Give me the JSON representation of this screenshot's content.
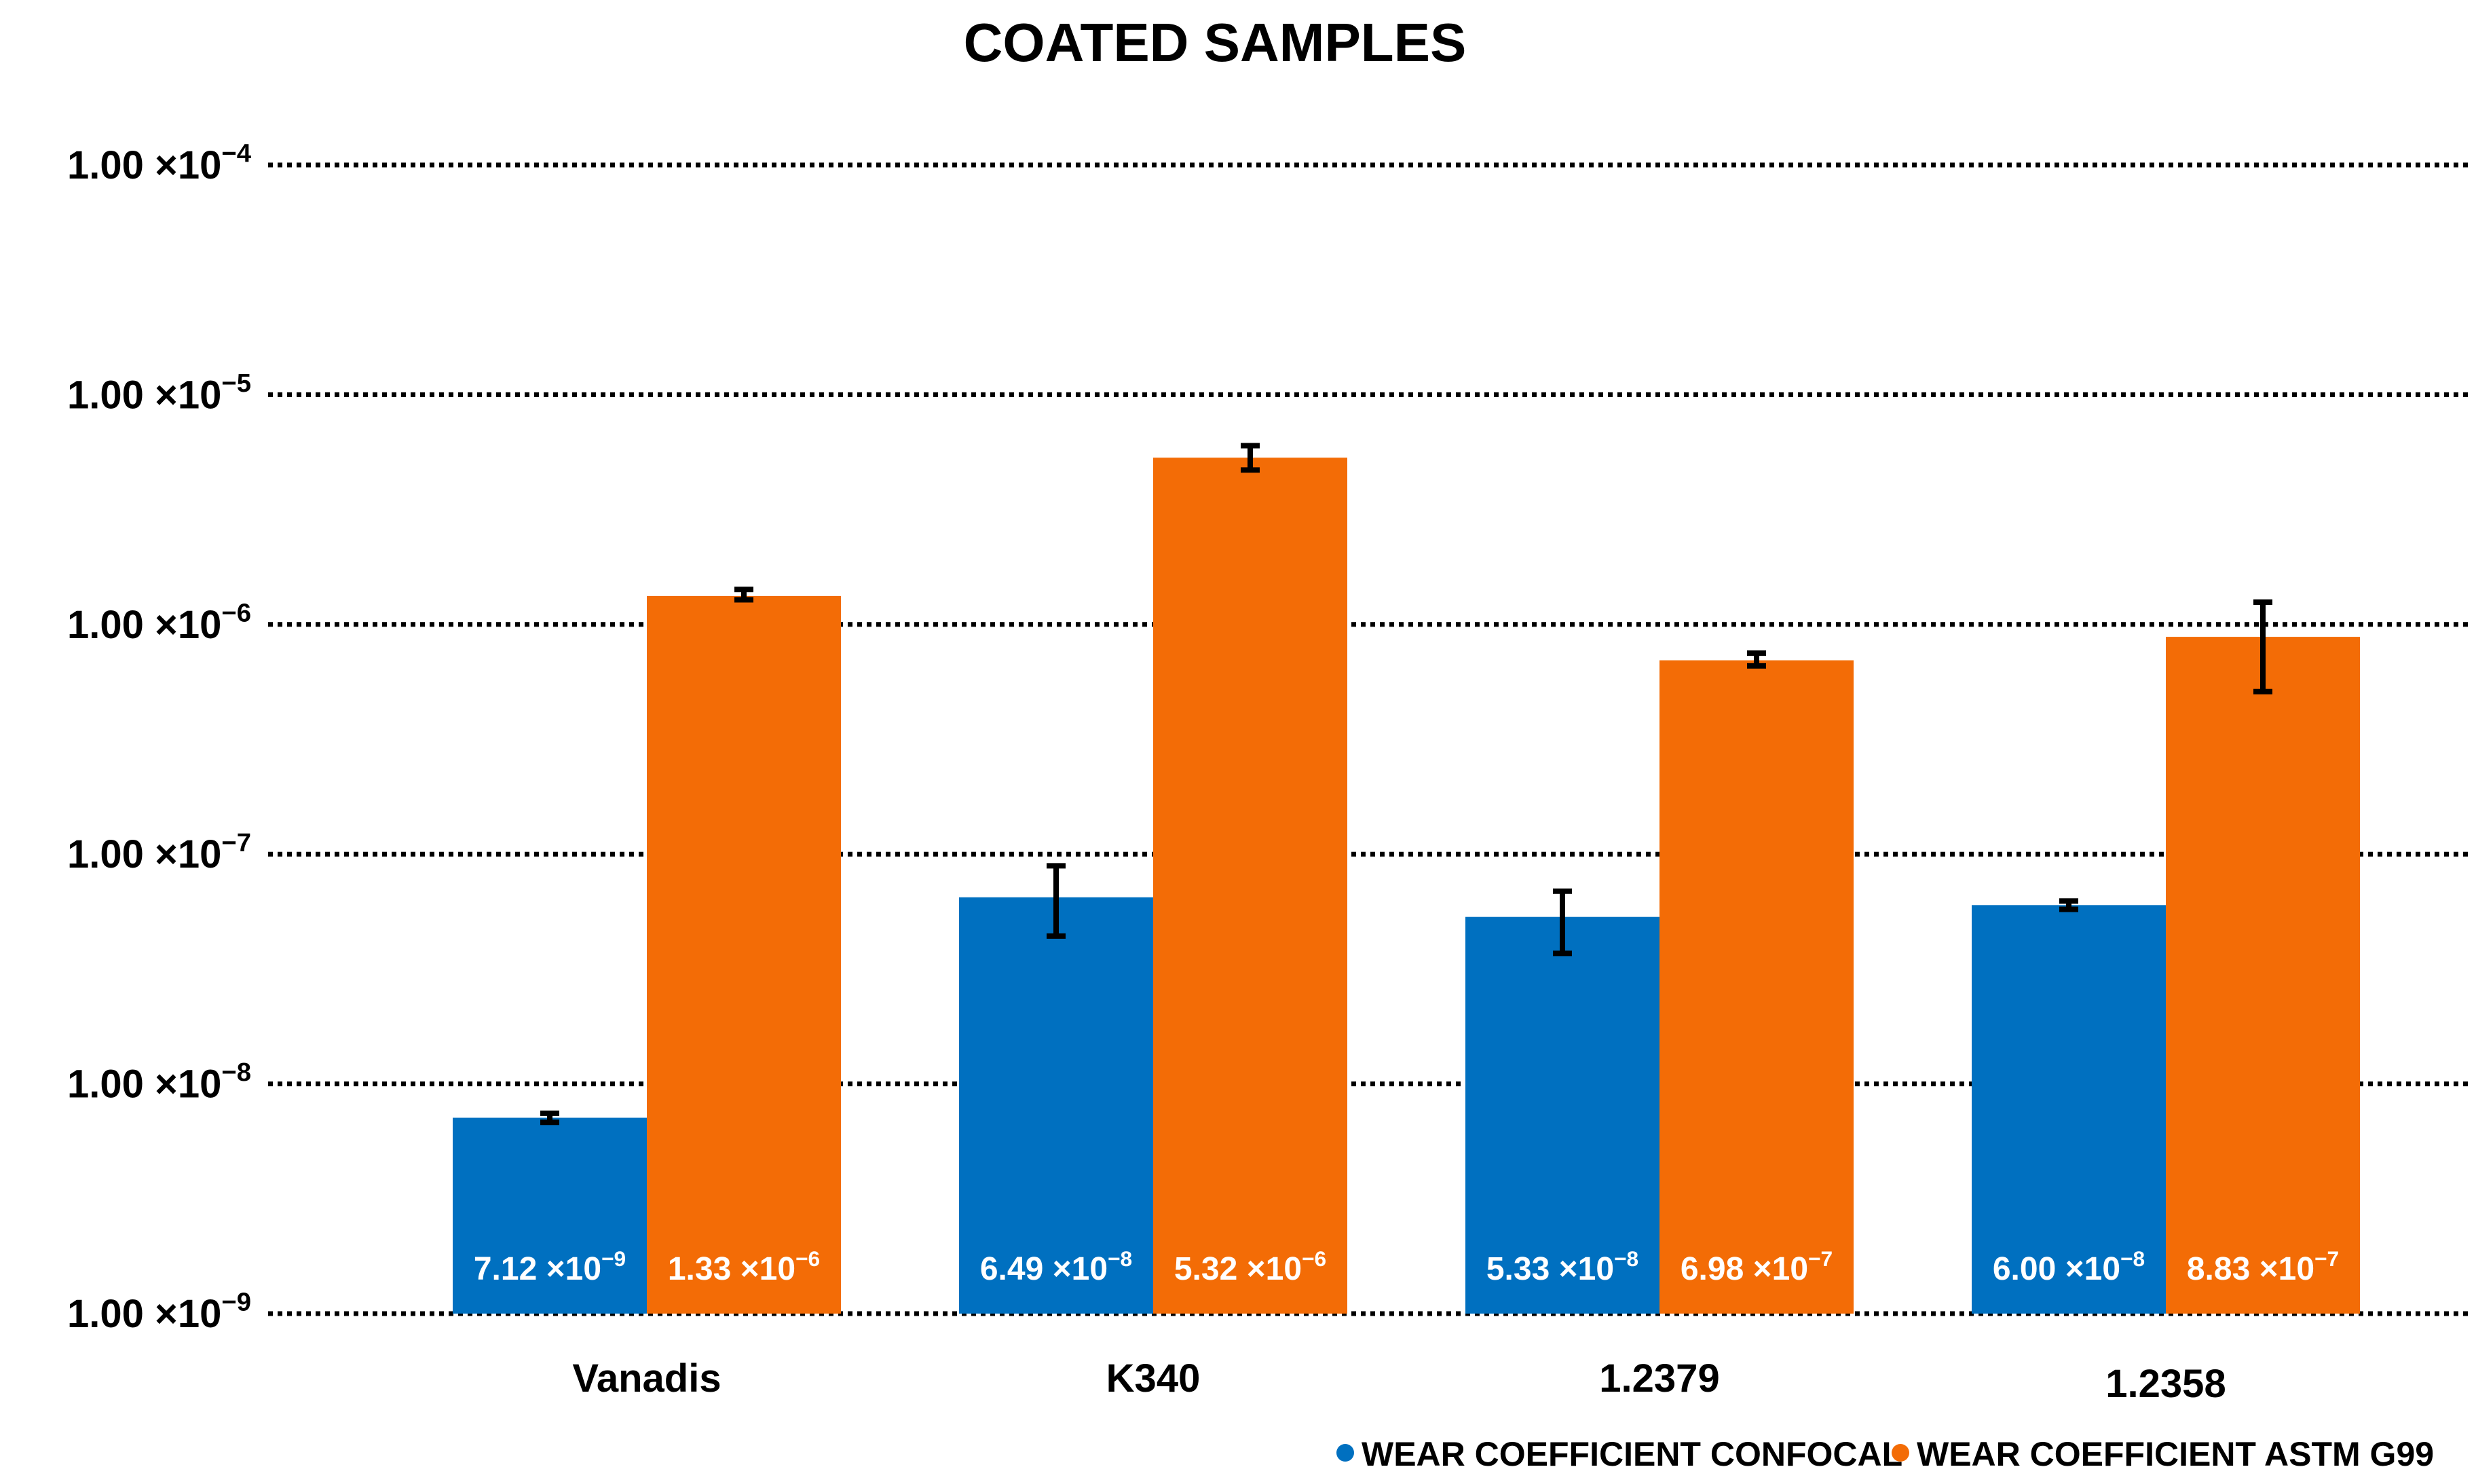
{
  "colors": {
    "confocal": "#0070c0",
    "astm": "#f36c06",
    "text": "#000000",
    "label": "#ffffff"
  },
  "chart_data": {
    "type": "bar",
    "title": "COATED SAMPLES",
    "scale": "log",
    "ylim": [
      1e-09,
      0.0001
    ],
    "yticks": [
      {
        "value": 0.0001,
        "mantissa": "1.00 ×10",
        "exp": "−4"
      },
      {
        "value": 1e-05,
        "mantissa": "1.00 ×10",
        "exp": "−5"
      },
      {
        "value": 1e-06,
        "mantissa": "1.00 ×10",
        "exp": "−6"
      },
      {
        "value": 1e-07,
        "mantissa": "1.00 ×10",
        "exp": "−7"
      },
      {
        "value": 1e-08,
        "mantissa": "1.00 ×10",
        "exp": "−8"
      },
      {
        "value": 1e-09,
        "mantissa": "1.00 ×10",
        "exp": "−9"
      }
    ],
    "grid": "dotted-horizontal",
    "legend_position": "bottom-right",
    "categories": [
      "Vanadis",
      "K340",
      "1.2379",
      "1.2358"
    ],
    "series": [
      {
        "name": "WEAR COEFFICIENT CONFOCAL",
        "color_key": "confocal",
        "values": [
          7.12e-09,
          6.49e-08,
          5.33e-08,
          6e-08
        ],
        "error_low": [
          6.8e-09,
          4.4e-08,
          3.7e-08,
          5.75e-08
        ],
        "error_high": [
          7.45e-09,
          8.9e-08,
          6.9e-08,
          6.25e-08
        ],
        "labels": [
          {
            "mantissa": "7.12 ×10",
            "exp": "−9"
          },
          {
            "mantissa": "6.49 ×10",
            "exp": "−8"
          },
          {
            "mantissa": "5.33 ×10",
            "exp": "−8"
          },
          {
            "mantissa": "6.00 ×10",
            "exp": "−8"
          }
        ]
      },
      {
        "name": "WEAR COEFFICIENT ASTM G99",
        "color_key": "astm",
        "values": [
          1.33e-06,
          5.32e-06,
          6.98e-07,
          8.83e-07
        ],
        "error_low": [
          1.28e-06,
          4.7e-06,
          6.6e-07,
          5.1e-07
        ],
        "error_high": [
          1.42e-06,
          6e-06,
          7.5e-07,
          1.25e-06
        ],
        "labels": [
          {
            "mantissa": "1.33 ×10",
            "exp": "−6"
          },
          {
            "mantissa": "5.32 ×10",
            "exp": "−6"
          },
          {
            "mantissa": "6.98 ×10",
            "exp": "−7"
          },
          {
            "mantissa": "8.83 ×10",
            "exp": "−7"
          }
        ]
      }
    ]
  }
}
